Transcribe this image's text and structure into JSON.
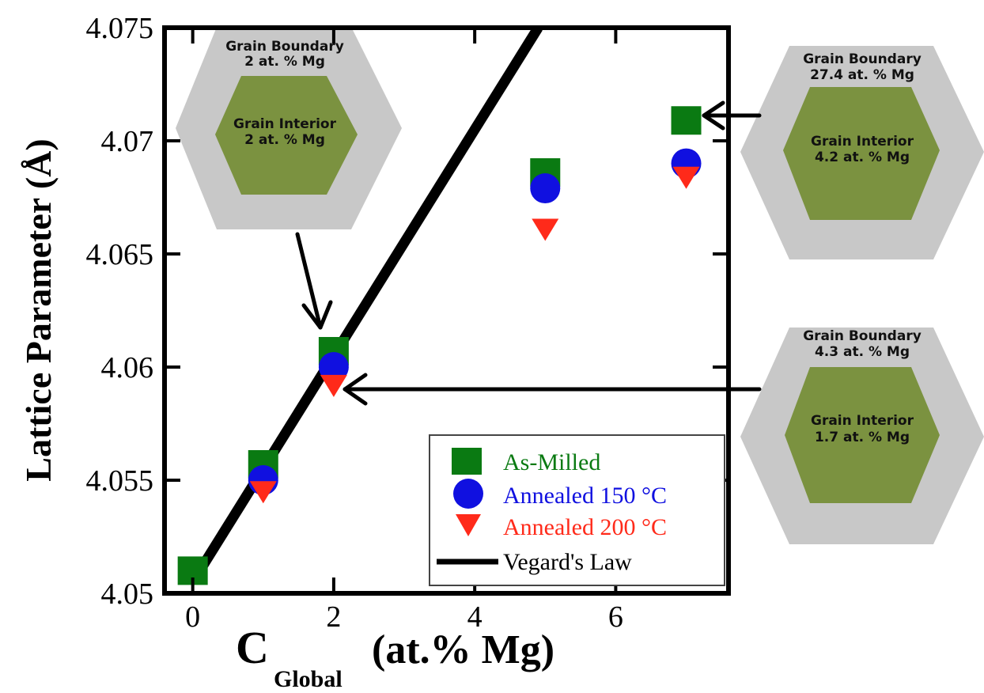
{
  "chart_data": {
    "type": "scatter",
    "title": "",
    "xlabel": "(at.% Mg)",
    "xlabel_symbol": "C",
    "xlabel_subscript": "Global",
    "ylabel": "Lattice Parameter  (Å)",
    "xlim": [
      -0.4,
      7.6
    ],
    "ylim": [
      4.05,
      4.075
    ],
    "xticks": [
      0,
      2,
      4,
      6
    ],
    "xtick_labels": [
      "0",
      "2",
      "4",
      "6"
    ],
    "yticks": [
      4.05,
      4.055,
      4.06,
      4.065,
      4.07,
      4.075
    ],
    "ytick_labels": [
      "4.05",
      "4.055",
      "4.06",
      "4.065",
      "4.07",
      "4.075"
    ],
    "grid": false,
    "legend_position": "bottom-right",
    "series": [
      {
        "name": "As-Milled",
        "marker": "square",
        "color": "#0a7a12",
        "points": [
          [
            0,
            4.051
          ],
          [
            1,
            4.0557
          ],
          [
            2,
            4.0607
          ],
          [
            5,
            4.0686
          ],
          [
            7,
            4.0709
          ]
        ]
      },
      {
        "name": "Annealed 150 °C",
        "marker": "circle",
        "color": "#1010e0",
        "points": [
          [
            1,
            4.055
          ],
          [
            2,
            4.06
          ],
          [
            5,
            4.0679
          ],
          [
            7,
            4.069
          ]
        ]
      },
      {
        "name": "Annealed 200 °C",
        "marker": "triangle-down",
        "color": "#ff2a1a",
        "points": [
          [
            1,
            4.0545
          ],
          [
            2,
            4.0592
          ],
          [
            5,
            4.0661
          ],
          [
            7,
            4.0684
          ]
        ]
      },
      {
        "name": "Vegard's Law",
        "marker": "line",
        "color": "#000000",
        "points": [
          [
            0,
            4.0505
          ],
          [
            4.9,
            4.075
          ]
        ]
      }
    ],
    "annotations": [
      {
        "id": "hex-2",
        "boundary_title": "Grain Boundary",
        "boundary_value": "2 at. % Mg",
        "interior_title": "Grain Interior",
        "interior_value": "2 at. % Mg",
        "points_to": [
          2,
          4.0607
        ]
      },
      {
        "id": "hex-7",
        "boundary_title": "Grain Boundary",
        "boundary_value": "27.4 at. % Mg",
        "interior_title": "Grain Interior",
        "interior_value": "4.2 at. % Mg",
        "points_to": [
          7,
          4.0709
        ]
      },
      {
        "id": "hex-2b",
        "boundary_title": "Grain Boundary",
        "boundary_value": "4.3 at. % Mg",
        "interior_title": "Grain Interior",
        "interior_value": "1.7 at. % Mg",
        "points_to": [
          2,
          4.0592
        ]
      }
    ],
    "colors": {
      "grain_boundary": "#c8c8c8",
      "grain_interior": "#7b9240"
    }
  }
}
